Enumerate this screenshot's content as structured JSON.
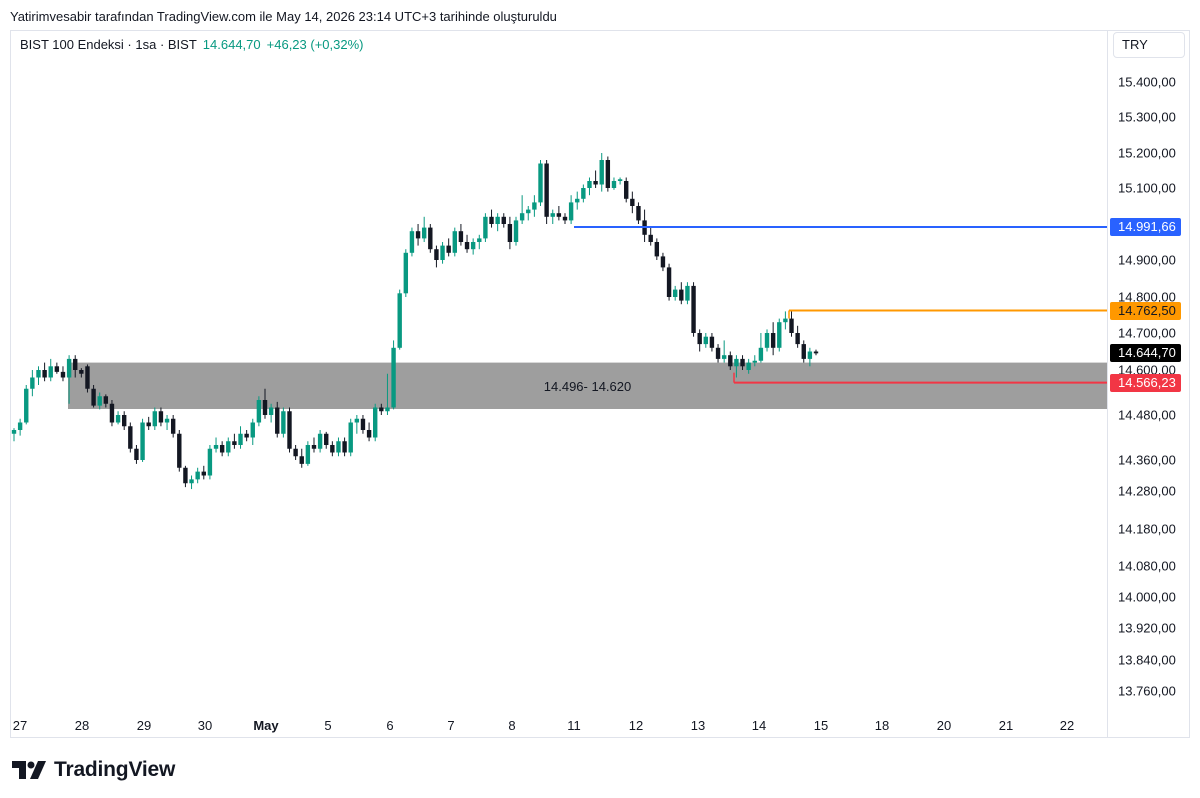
{
  "attribution": "Yatirimvesabir tarafından TradingView.com ile May 14, 2026 23:14 UTC+3 tarihinde oluşturuldu",
  "legend": {
    "symbol": "BIST 100 Endeksi · 1sa · BIST",
    "price": "14.644,70",
    "change": "+46,23 (+0,32%)"
  },
  "currency": "TRY",
  "brand": "TradingView",
  "colors": {
    "up": "#089981",
    "down": "#131722",
    "zone": "#9e9e9e",
    "blue_line": "#2962ff",
    "orange_line": "#ff9800",
    "red_line": "#f23645"
  },
  "chart_data": {
    "type": "candlestick",
    "y_ticks": [
      {
        "value": 15400,
        "label": "15.400,00"
      },
      {
        "value": 15300,
        "label": "15.300,00"
      },
      {
        "value": 15200,
        "label": "15.200,00"
      },
      {
        "value": 15100,
        "label": "15.100,00"
      },
      {
        "value": 14900,
        "label": "14.900,00"
      },
      {
        "value": 14800,
        "label": "14.800,00"
      },
      {
        "value": 14700,
        "label": "14.700,00"
      },
      {
        "value": 14600,
        "label": "14.600,00"
      },
      {
        "value": 14480,
        "label": "14.480,00"
      },
      {
        "value": 14360,
        "label": "14.360,00"
      },
      {
        "value": 14280,
        "label": "14.280,00"
      },
      {
        "value": 14180,
        "label": "14.180,00"
      },
      {
        "value": 14080,
        "label": "14.080,00"
      },
      {
        "value": 14000,
        "label": "14.000,00"
      },
      {
        "value": 13920,
        "label": "13.920,00"
      },
      {
        "value": 13840,
        "label": "13.840,00"
      },
      {
        "value": 13760,
        "label": "13.760,00"
      }
    ],
    "x_labels": [
      {
        "label": "27",
        "bold": false
      },
      {
        "label": "28",
        "bold": false
      },
      {
        "label": "29",
        "bold": false
      },
      {
        "label": "30",
        "bold": false
      },
      {
        "label": "May",
        "bold": true
      },
      {
        "label": "5",
        "bold": false
      },
      {
        "label": "6",
        "bold": false
      },
      {
        "label": "7",
        "bold": false
      },
      {
        "label": "8",
        "bold": false
      },
      {
        "label": "11",
        "bold": false
      },
      {
        "label": "12",
        "bold": false
      },
      {
        "label": "13",
        "bold": false
      },
      {
        "label": "14",
        "bold": false
      },
      {
        "label": "15",
        "bold": false
      },
      {
        "label": "18",
        "bold": false
      },
      {
        "label": "20",
        "bold": false
      },
      {
        "label": "21",
        "bold": false
      },
      {
        "label": "22",
        "bold": false
      }
    ],
    "price_labels": [
      {
        "value": 14991.66,
        "label": "14.991,66",
        "color": "#2962ff",
        "text_color": "#ffffff"
      },
      {
        "value": 14762.5,
        "label": "14.762,50",
        "color": "#ff9800",
        "text_color": "#131722"
      },
      {
        "value": 14644.7,
        "label": "14.644,70",
        "color": "#000000",
        "text_color": "#ffffff"
      },
      {
        "value": 14566.23,
        "label": "14.566,23",
        "color": "#f23645",
        "text_color": "#ffffff"
      }
    ],
    "zone": {
      "low": 14496,
      "high": 14620,
      "label": "14.496- 14.620",
      "from_day": "28",
      "color": "#9e9e9e"
    },
    "levels": [
      {
        "value": 14991.66,
        "from_day": "11",
        "color": "#2962ff"
      },
      {
        "value": 14762.5,
        "from_day": "14",
        "color": "#ff9800"
      },
      {
        "value": 14566.23,
        "from_day": "13",
        "color": "#f23645"
      }
    ],
    "candles": [
      {
        "o": 14430,
        "h": 14445,
        "l": 14410,
        "c": 14440
      },
      {
        "o": 14440,
        "h": 14470,
        "l": 14425,
        "c": 14460
      },
      {
        "o": 14460,
        "h": 14560,
        "l": 14455,
        "c": 14550
      },
      {
        "o": 14550,
        "h": 14600,
        "l": 14530,
        "c": 14580
      },
      {
        "o": 14580,
        "h": 14610,
        "l": 14560,
        "c": 14600
      },
      {
        "o": 14600,
        "h": 14620,
        "l": 14570,
        "c": 14580
      },
      {
        "o": 14580,
        "h": 14630,
        "l": 14570,
        "c": 14610
      },
      {
        "o": 14610,
        "h": 14620,
        "l": 14590,
        "c": 14595
      },
      {
        "o": 14595,
        "h": 14610,
        "l": 14570,
        "c": 14580
      },
      {
        "o": 14580,
        "h": 14640,
        "l": 14510,
        "c": 14630
      },
      {
        "o": 14630,
        "h": 14640,
        "l": 14580,
        "c": 14600
      },
      {
        "o": 14600,
        "h": 14605,
        "l": 14580,
        "c": 14590
      },
      {
        "o": 14610,
        "h": 14615,
        "l": 14540,
        "c": 14550
      },
      {
        "o": 14550,
        "h": 14560,
        "l": 14500,
        "c": 14505
      },
      {
        "o": 14505,
        "h": 14540,
        "l": 14495,
        "c": 14530
      },
      {
        "o": 14530,
        "h": 14535,
        "l": 14500,
        "c": 14510
      },
      {
        "o": 14510,
        "h": 14520,
        "l": 14450,
        "c": 14460
      },
      {
        "o": 14460,
        "h": 14490,
        "l": 14455,
        "c": 14480
      },
      {
        "o": 14480,
        "h": 14490,
        "l": 14440,
        "c": 14450
      },
      {
        "o": 14450,
        "h": 14460,
        "l": 14380,
        "c": 14390
      },
      {
        "o": 14390,
        "h": 14400,
        "l": 14350,
        "c": 14360
      },
      {
        "o": 14360,
        "h": 14470,
        "l": 14355,
        "c": 14460
      },
      {
        "o": 14460,
        "h": 14475,
        "l": 14440,
        "c": 14450
      },
      {
        "o": 14450,
        "h": 14500,
        "l": 14440,
        "c": 14490
      },
      {
        "o": 14490,
        "h": 14500,
        "l": 14450,
        "c": 14460
      },
      {
        "o": 14460,
        "h": 14480,
        "l": 14440,
        "c": 14470
      },
      {
        "o": 14470,
        "h": 14480,
        "l": 14420,
        "c": 14430
      },
      {
        "o": 14430,
        "h": 14440,
        "l": 14330,
        "c": 14340
      },
      {
        "o": 14340,
        "h": 14345,
        "l": 14290,
        "c": 14300
      },
      {
        "o": 14300,
        "h": 14320,
        "l": 14285,
        "c": 14310
      },
      {
        "o": 14310,
        "h": 14340,
        "l": 14300,
        "c": 14330
      },
      {
        "o": 14330,
        "h": 14345,
        "l": 14310,
        "c": 14320
      },
      {
        "o": 14320,
        "h": 14400,
        "l": 14310,
        "c": 14390
      },
      {
        "o": 14390,
        "h": 14420,
        "l": 14380,
        "c": 14400
      },
      {
        "o": 14400,
        "h": 14410,
        "l": 14370,
        "c": 14380
      },
      {
        "o": 14380,
        "h": 14420,
        "l": 14370,
        "c": 14410
      },
      {
        "o": 14410,
        "h": 14430,
        "l": 14390,
        "c": 14400
      },
      {
        "o": 14400,
        "h": 14450,
        "l": 14390,
        "c": 14430
      },
      {
        "o": 14430,
        "h": 14440,
        "l": 14410,
        "c": 14420
      },
      {
        "o": 14420,
        "h": 14470,
        "l": 14400,
        "c": 14460
      },
      {
        "o": 14460,
        "h": 14530,
        "l": 14450,
        "c": 14520
      },
      {
        "o": 14520,
        "h": 14550,
        "l": 14470,
        "c": 14480
      },
      {
        "o": 14480,
        "h": 14510,
        "l": 14460,
        "c": 14500
      },
      {
        "o": 14500,
        "h": 14515,
        "l": 14420,
        "c": 14430
      },
      {
        "o": 14430,
        "h": 14500,
        "l": 14420,
        "c": 14490
      },
      {
        "o": 14490,
        "h": 14500,
        "l": 14380,
        "c": 14390
      },
      {
        "o": 14390,
        "h": 14400,
        "l": 14360,
        "c": 14370
      },
      {
        "o": 14370,
        "h": 14390,
        "l": 14340,
        "c": 14350
      },
      {
        "o": 14350,
        "h": 14410,
        "l": 14345,
        "c": 14400
      },
      {
        "o": 14400,
        "h": 14420,
        "l": 14380,
        "c": 14390
      },
      {
        "o": 14390,
        "h": 14440,
        "l": 14380,
        "c": 14430
      },
      {
        "o": 14430,
        "h": 14435,
        "l": 14390,
        "c": 14400
      },
      {
        "o": 14400,
        "h": 14410,
        "l": 14370,
        "c": 14380
      },
      {
        "o": 14380,
        "h": 14420,
        "l": 14370,
        "c": 14410
      },
      {
        "o": 14410,
        "h": 14420,
        "l": 14370,
        "c": 14380
      },
      {
        "o": 14380,
        "h": 14470,
        "l": 14370,
        "c": 14460
      },
      {
        "o": 14460,
        "h": 14480,
        "l": 14430,
        "c": 14470
      },
      {
        "o": 14470,
        "h": 14480,
        "l": 14430,
        "c": 14440
      },
      {
        "o": 14440,
        "h": 14460,
        "l": 14410,
        "c": 14420
      },
      {
        "o": 14420,
        "h": 14510,
        "l": 14410,
        "c": 14500
      },
      {
        "o": 14500,
        "h": 14510,
        "l": 14480,
        "c": 14490
      },
      {
        "o": 14490,
        "h": 14590,
        "l": 14480,
        "c": 14500
      },
      {
        "o": 14500,
        "h": 14680,
        "l": 14495,
        "c": 14660
      },
      {
        "o": 14660,
        "h": 14820,
        "l": 14655,
        "c": 14810
      },
      {
        "o": 14810,
        "h": 14930,
        "l": 14800,
        "c": 14920
      },
      {
        "o": 14920,
        "h": 14990,
        "l": 14910,
        "c": 14980
      },
      {
        "o": 14980,
        "h": 15000,
        "l": 14940,
        "c": 14960
      },
      {
        "o": 14960,
        "h": 15020,
        "l": 14950,
        "c": 14990
      },
      {
        "o": 14990,
        "h": 15000,
        "l": 14920,
        "c": 14930
      },
      {
        "o": 14930,
        "h": 14940,
        "l": 14880,
        "c": 14900
      },
      {
        "o": 14900,
        "h": 14950,
        "l": 14890,
        "c": 14940
      },
      {
        "o": 14940,
        "h": 14960,
        "l": 14910,
        "c": 14920
      },
      {
        "o": 14920,
        "h": 14990,
        "l": 14910,
        "c": 14980
      },
      {
        "o": 14980,
        "h": 15000,
        "l": 14940,
        "c": 14950
      },
      {
        "o": 14950,
        "h": 14970,
        "l": 14920,
        "c": 14930
      },
      {
        "o": 14930,
        "h": 14960,
        "l": 14915,
        "c": 14950
      },
      {
        "o": 14950,
        "h": 14970,
        "l": 14930,
        "c": 14960
      },
      {
        "o": 14960,
        "h": 15030,
        "l": 14950,
        "c": 15020
      },
      {
        "o": 15020,
        "h": 15040,
        "l": 14990,
        "c": 15000
      },
      {
        "o": 15000,
        "h": 15030,
        "l": 14980,
        "c": 15020
      },
      {
        "o": 15020,
        "h": 15030,
        "l": 14990,
        "c": 15000
      },
      {
        "o": 15000,
        "h": 15020,
        "l": 14930,
        "c": 14950
      },
      {
        "o": 14950,
        "h": 15020,
        "l": 14940,
        "c": 15010
      },
      {
        "o": 15010,
        "h": 15080,
        "l": 15000,
        "c": 15030
      },
      {
        "o": 15030,
        "h": 15050,
        "l": 15010,
        "c": 15040
      },
      {
        "o": 15040,
        "h": 15080,
        "l": 15020,
        "c": 15060
      },
      {
        "o": 15060,
        "h": 15180,
        "l": 15050,
        "c": 15170
      },
      {
        "o": 15170,
        "h": 15180,
        "l": 15000,
        "c": 15020
      },
      {
        "o": 15020,
        "h": 15040,
        "l": 15000,
        "c": 15030
      },
      {
        "o": 15030,
        "h": 15050,
        "l": 15010,
        "c": 15020
      },
      {
        "o": 15020,
        "h": 15030,
        "l": 15000,
        "c": 15010
      },
      {
        "o": 15010,
        "h": 15080,
        "l": 15000,
        "c": 15060
      },
      {
        "o": 15060,
        "h": 15090,
        "l": 15040,
        "c": 15070
      },
      {
        "o": 15070,
        "h": 15110,
        "l": 15060,
        "c": 15100
      },
      {
        "o": 15100,
        "h": 15130,
        "l": 15080,
        "c": 15120
      },
      {
        "o": 15120,
        "h": 15150,
        "l": 15100,
        "c": 15110
      },
      {
        "o": 15110,
        "h": 15200,
        "l": 15090,
        "c": 15180
      },
      {
        "o": 15180,
        "h": 15190,
        "l": 15090,
        "c": 15100
      },
      {
        "o": 15100,
        "h": 15130,
        "l": 15095,
        "c": 15120
      },
      {
        "o": 15120,
        "h": 15130,
        "l": 15110,
        "c": 15125
      },
      {
        "o": 15120,
        "h": 15130,
        "l": 15060,
        "c": 15070
      },
      {
        "o": 15070,
        "h": 15090,
        "l": 15030,
        "c": 15050
      },
      {
        "o": 15050,
        "h": 15060,
        "l": 15000,
        "c": 15010
      },
      {
        "o": 15010,
        "h": 15040,
        "l": 14950,
        "c": 14970
      },
      {
        "o": 14970,
        "h": 14990,
        "l": 14940,
        "c": 14950
      },
      {
        "o": 14950,
        "h": 14960,
        "l": 14900,
        "c": 14910
      },
      {
        "o": 14910,
        "h": 14920,
        "l": 14870,
        "c": 14880
      },
      {
        "o": 14880,
        "h": 14890,
        "l": 14790,
        "c": 14800
      },
      {
        "o": 14800,
        "h": 14830,
        "l": 14790,
        "c": 14820
      },
      {
        "o": 14820,
        "h": 14840,
        "l": 14780,
        "c": 14790
      },
      {
        "o": 14790,
        "h": 14840,
        "l": 14780,
        "c": 14830
      },
      {
        "o": 14830,
        "h": 14840,
        "l": 14690,
        "c": 14700
      },
      {
        "o": 14700,
        "h": 14710,
        "l": 14650,
        "c": 14670
      },
      {
        "o": 14670,
        "h": 14700,
        "l": 14660,
        "c": 14690
      },
      {
        "o": 14690,
        "h": 14700,
        "l": 14650,
        "c": 14660
      },
      {
        "o": 14660,
        "h": 14670,
        "l": 14620,
        "c": 14630
      },
      {
        "o": 14630,
        "h": 14680,
        "l": 14620,
        "c": 14640
      },
      {
        "o": 14640,
        "h": 14650,
        "l": 14600,
        "c": 14610
      },
      {
        "o": 14610,
        "h": 14640,
        "l": 14580,
        "c": 14630
      },
      {
        "o": 14630,
        "h": 14640,
        "l": 14600,
        "c": 14610
      },
      {
        "o": 14600,
        "h": 14630,
        "l": 14590,
        "c": 14620
      },
      {
        "o": 14620,
        "h": 14640,
        "l": 14610,
        "c": 14625
      },
      {
        "o": 14625,
        "h": 14700,
        "l": 14620,
        "c": 14660
      },
      {
        "o": 14660,
        "h": 14710,
        "l": 14650,
        "c": 14700
      },
      {
        "o": 14700,
        "h": 14730,
        "l": 14640,
        "c": 14660
      },
      {
        "o": 14660,
        "h": 14740,
        "l": 14650,
        "c": 14730
      },
      {
        "o": 14730,
        "h": 14760,
        "l": 14710,
        "c": 14740
      },
      {
        "o": 14740,
        "h": 14762,
        "l": 14690,
        "c": 14700
      },
      {
        "o": 14700,
        "h": 14720,
        "l": 14660,
        "c": 14670
      },
      {
        "o": 14670,
        "h": 14680,
        "l": 14620,
        "c": 14630
      },
      {
        "o": 14630,
        "h": 14660,
        "l": 14610,
        "c": 14650
      },
      {
        "o": 14650,
        "h": 14655,
        "l": 14640,
        "c": 14645
      }
    ]
  }
}
